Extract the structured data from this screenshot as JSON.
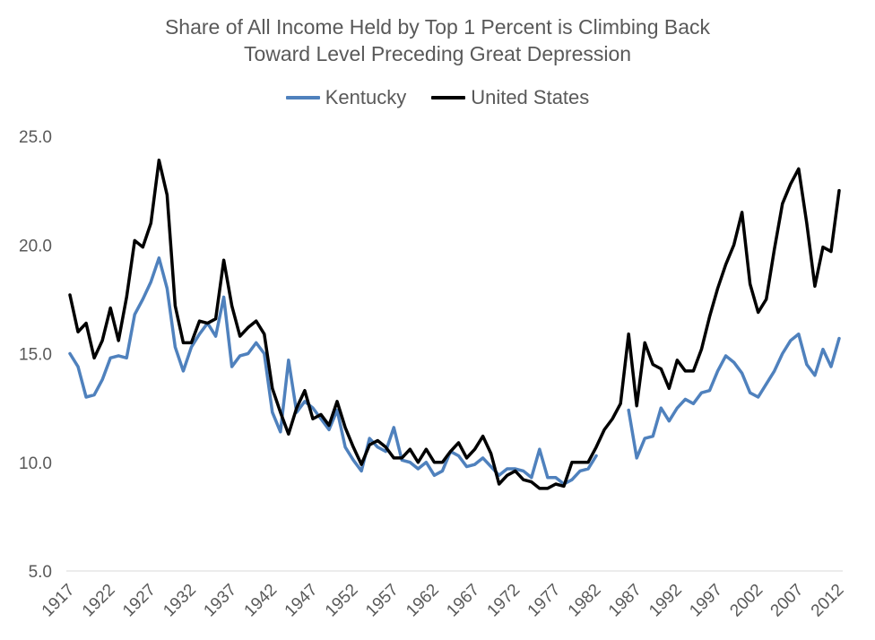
{
  "chart_data": {
    "type": "line",
    "title_lines": [
      "Share of All Income Held by Top 1 Percent is Climbing Back",
      "Toward Level Preceding Great Depression"
    ],
    "xlabel": "",
    "ylabel": "",
    "ylim": [
      5.0,
      25.0
    ],
    "yticks": [
      5.0,
      10.0,
      15.0,
      20.0,
      25.0
    ],
    "xticks": [
      "1917",
      "1922",
      "1927",
      "1932",
      "1937",
      "1942",
      "1947",
      "1952",
      "1957",
      "1962",
      "1967",
      "1972",
      "1977",
      "1982",
      "1987",
      "1992",
      "1997",
      "2002",
      "2007",
      "2012"
    ],
    "x": [
      1917,
      1918,
      1919,
      1920,
      1921,
      1922,
      1923,
      1924,
      1925,
      1926,
      1927,
      1928,
      1929,
      1930,
      1931,
      1932,
      1933,
      1934,
      1935,
      1936,
      1937,
      1938,
      1939,
      1940,
      1941,
      1942,
      1943,
      1944,
      1945,
      1946,
      1947,
      1948,
      1949,
      1950,
      1951,
      1952,
      1953,
      1954,
      1955,
      1956,
      1957,
      1958,
      1959,
      1960,
      1961,
      1962,
      1963,
      1964,
      1965,
      1966,
      1967,
      1968,
      1969,
      1970,
      1971,
      1972,
      1973,
      1974,
      1975,
      1976,
      1977,
      1978,
      1979,
      1980,
      1981,
      1982,
      1983,
      1984,
      1985,
      1986,
      1987,
      1988,
      1989,
      1990,
      1991,
      1992,
      1993,
      1994,
      1995,
      1996,
      1997,
      1998,
      1999,
      2000,
      2001,
      2002,
      2003,
      2004,
      2005,
      2006,
      2007,
      2008,
      2009,
      2010,
      2011,
      2012
    ],
    "grid": false,
    "legend_position": "top",
    "series": [
      {
        "name": "Kentucky",
        "color": "#4f81bd",
        "values": [
          15.0,
          14.4,
          13.0,
          13.1,
          13.8,
          14.8,
          14.9,
          14.8,
          16.8,
          17.5,
          18.3,
          19.4,
          18.0,
          15.3,
          14.2,
          15.3,
          15.9,
          16.4,
          15.8,
          17.6,
          14.4,
          14.9,
          15.0,
          15.5,
          15.0,
          12.3,
          11.4,
          14.7,
          12.3,
          12.8,
          12.5,
          12.0,
          11.5,
          12.4,
          10.7,
          10.1,
          9.6,
          11.1,
          10.7,
          10.5,
          11.6,
          10.1,
          10.0,
          9.7,
          10.0,
          9.4,
          9.6,
          10.5,
          10.3,
          9.8,
          9.9,
          10.2,
          9.8,
          9.4,
          9.7,
          9.7,
          9.6,
          9.3,
          10.6,
          9.3,
          9.3,
          9.0,
          9.2,
          9.6,
          9.7,
          10.3,
          null,
          null,
          null,
          12.4,
          10.2,
          11.1,
          11.2,
          12.5,
          11.9,
          12.5,
          12.9,
          12.7,
          13.2,
          13.3,
          14.2,
          14.9,
          14.6,
          14.1,
          13.2,
          13.0,
          13.6,
          14.2,
          15.0,
          15.6,
          15.9,
          14.5,
          14.0,
          15.2,
          14.4,
          15.7
        ]
      },
      {
        "name": "United States",
        "color": "#000000",
        "values": [
          17.7,
          16.0,
          16.4,
          14.8,
          15.6,
          17.1,
          15.6,
          17.6,
          20.2,
          19.9,
          21.0,
          23.9,
          22.3,
          17.2,
          15.5,
          15.5,
          16.5,
          16.4,
          16.6,
          19.3,
          17.2,
          15.8,
          16.2,
          16.5,
          15.9,
          13.4,
          12.3,
          11.3,
          12.5,
          13.3,
          12.0,
          12.2,
          11.7,
          12.8,
          11.6,
          10.7,
          9.9,
          10.8,
          11.0,
          10.7,
          10.2,
          10.2,
          10.6,
          10.0,
          10.6,
          10.0,
          10.0,
          10.5,
          10.9,
          10.2,
          10.6,
          11.2,
          10.4,
          9.0,
          9.4,
          9.6,
          9.2,
          9.1,
          8.8,
          8.8,
          9.0,
          8.9,
          10.0,
          10.0,
          10.0,
          10.7,
          11.5,
          12.0,
          12.7,
          15.9,
          12.6,
          15.5,
          14.5,
          14.3,
          13.4,
          14.7,
          14.2,
          14.2,
          15.2,
          16.7,
          18.0,
          19.1,
          20.0,
          21.5,
          18.2,
          16.9,
          17.5,
          19.8,
          21.9,
          22.8,
          23.5,
          21.0,
          18.1,
          19.9,
          19.7,
          22.5
        ]
      }
    ]
  }
}
